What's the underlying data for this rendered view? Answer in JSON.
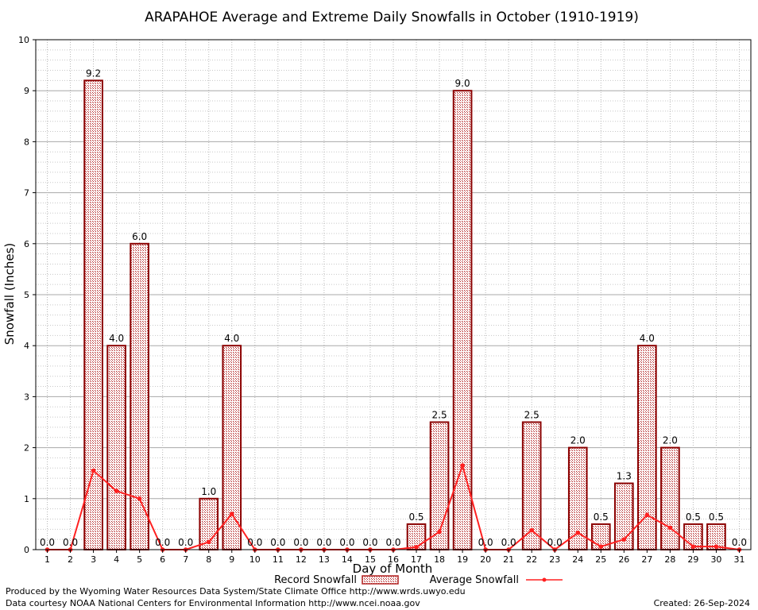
{
  "chart_data": {
    "type": "bar",
    "title": "ARAPAHOE Average and Extreme Daily Snowfalls in October (1910-1919)",
    "xlabel": "Day of Month",
    "ylabel": "Snowfall (Inches)",
    "ylim": [
      0,
      10
    ],
    "yticks": [
      "0",
      "1",
      "2",
      "3",
      "4",
      "5",
      "6",
      "7",
      "8",
      "9",
      "10"
    ],
    "categories": [
      "1",
      "2",
      "3",
      "4",
      "5",
      "6",
      "7",
      "8",
      "9",
      "10",
      "11",
      "12",
      "13",
      "14",
      "15",
      "16",
      "17",
      "18",
      "19",
      "20",
      "21",
      "22",
      "23",
      "24",
      "25",
      "26",
      "27",
      "28",
      "29",
      "30",
      "31"
    ],
    "grid": true,
    "legend_position": "bottom",
    "series": [
      {
        "name": "Record Snowfall",
        "type": "bar",
        "color": "#b22222",
        "values": [
          0.0,
          0.0,
          9.2,
          4.0,
          6.0,
          0.0,
          0.0,
          1.0,
          4.0,
          0.0,
          0.0,
          0.0,
          0.0,
          0.0,
          0.0,
          0.0,
          0.5,
          2.5,
          9.0,
          0.0,
          0.0,
          2.5,
          0.0,
          2.0,
          0.5,
          1.3,
          4.0,
          2.0,
          0.5,
          0.5,
          0.0
        ],
        "labels": [
          "0.0",
          "0.0",
          "9.2",
          "4.0",
          "6.0",
          "0.0",
          "0.0",
          "1.0",
          "4.0",
          "0.0",
          "0.0",
          "0.0",
          "0.0",
          "0.0",
          "0.0",
          "0.0",
          "0.5",
          "2.5",
          "9.0",
          "0.0",
          "0.0",
          "2.5",
          "0.0",
          "2.0",
          "0.5",
          "1.3",
          "4.0",
          "2.0",
          "0.5",
          "0.5",
          "0.0"
        ]
      },
      {
        "name": "Average Snowfall",
        "type": "line",
        "color": "#ff2020",
        "values": [
          0.0,
          0.0,
          1.55,
          1.15,
          1.0,
          0.0,
          0.0,
          0.15,
          0.7,
          0.0,
          0.0,
          0.0,
          0.0,
          0.0,
          0.0,
          0.0,
          0.05,
          0.35,
          1.65,
          0.0,
          0.0,
          0.38,
          0.0,
          0.33,
          0.06,
          0.2,
          0.68,
          0.43,
          0.06,
          0.06,
          0.0
        ]
      }
    ]
  },
  "footer": {
    "line1": "Produced by the Wyoming Water Resources Data System/State Climate Office http://www.wrds.uwyo.edu",
    "line2": "Data courtesy NOAA National Centers for Environmental Information http://www.ncei.noaa.gov",
    "created": "Created: 26-Sep-2024"
  }
}
